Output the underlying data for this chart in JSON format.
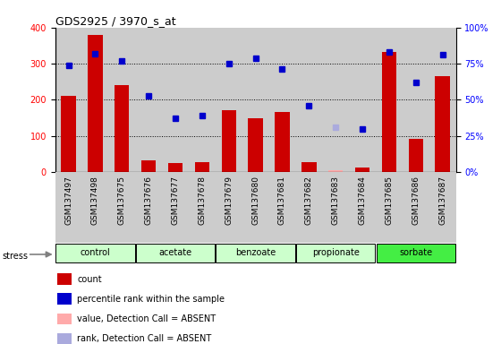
{
  "title": "GDS2925 / 3970_s_at",
  "samples": [
    "GSM137497",
    "GSM137498",
    "GSM137675",
    "GSM137676",
    "GSM137677",
    "GSM137678",
    "GSM137679",
    "GSM137680",
    "GSM137681",
    "GSM137682",
    "GSM137683",
    "GSM137684",
    "GSM137685",
    "GSM137686",
    "GSM137687"
  ],
  "count_values": [
    210,
    380,
    240,
    32,
    25,
    28,
    172,
    148,
    165,
    28,
    5,
    12,
    332,
    93,
    265
  ],
  "count_absent": [
    false,
    false,
    false,
    false,
    false,
    false,
    false,
    false,
    false,
    false,
    true,
    false,
    false,
    false,
    false
  ],
  "percentile_values": [
    74,
    82,
    77,
    53,
    37,
    39,
    75,
    79,
    71,
    46,
    31,
    30,
    83,
    62,
    81
  ],
  "percentile_absent": [
    false,
    false,
    false,
    false,
    false,
    false,
    false,
    false,
    false,
    false,
    true,
    false,
    false,
    false,
    false
  ],
  "groups": [
    {
      "name": "control",
      "indices": [
        0,
        1,
        2
      ],
      "color": "#ccffcc"
    },
    {
      "name": "acetate",
      "indices": [
        3,
        4,
        5
      ],
      "color": "#ccffcc"
    },
    {
      "name": "benzoate",
      "indices": [
        6,
        7,
        8
      ],
      "color": "#ccffcc"
    },
    {
      "name": "propionate",
      "indices": [
        9,
        10,
        11
      ],
      "color": "#ccffcc"
    },
    {
      "name": "sorbate",
      "indices": [
        12,
        13,
        14
      ],
      "color": "#44ee44"
    }
  ],
  "bar_color": "#cc0000",
  "bar_absent_color": "#ffaaaa",
  "dot_color": "#0000cc",
  "dot_absent_color": "#aaaadd",
  "col_bg_color": "#cccccc",
  "ylim_left": [
    0,
    400
  ],
  "ylim_right": [
    0,
    100
  ],
  "yticks_left": [
    0,
    100,
    200,
    300,
    400
  ],
  "yticks_right": [
    0,
    25,
    50,
    75,
    100
  ],
  "yticklabels_right": [
    "0%",
    "25%",
    "50%",
    "75%",
    "100%"
  ],
  "grid_lines": [
    100,
    200,
    300
  ],
  "stress_label": "stress",
  "legend_items": [
    {
      "label": "count",
      "color": "#cc0000"
    },
    {
      "label": "percentile rank within the sample",
      "color": "#0000cc"
    },
    {
      "label": "value, Detection Call = ABSENT",
      "color": "#ffaaaa"
    },
    {
      "label": "rank, Detection Call = ABSENT",
      "color": "#aaaadd"
    }
  ]
}
